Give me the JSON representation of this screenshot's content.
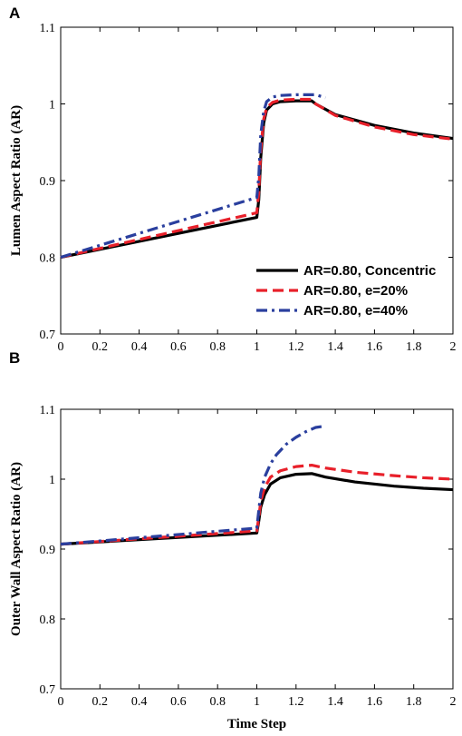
{
  "panels": [
    {
      "letter": "A",
      "chart_data": {
        "type": "line",
        "xlabel": "",
        "ylabel": "Lumen Aspect Ratio (AR)",
        "xlim": [
          0,
          2
        ],
        "ylim": [
          0.7,
          1.1
        ],
        "x_ticks": [
          0,
          0.2,
          0.4,
          0.6,
          0.8,
          1,
          1.2,
          1.4,
          1.6,
          1.8,
          2
        ],
        "x_tick_labels": [
          "0",
          "0.2",
          "0.4",
          "0.6",
          "0.8",
          "1",
          "1.2",
          "1.4",
          "1.6",
          "1.8",
          "2"
        ],
        "y_ticks": [
          0.7,
          0.8,
          0.9,
          1.0,
          1.1
        ],
        "y_tick_labels": [
          "0.7",
          "0.8",
          "0.9",
          "1",
          "1.1"
        ],
        "grid": false,
        "legend": "bottom-right",
        "series": [
          {
            "name": "AR=0.80, Concentric",
            "color": "#000000",
            "style": "solid",
            "points": [
              [
                0,
                0.8
              ],
              [
                1.0,
                0.852
              ],
              [
                1.01,
                0.875
              ],
              [
                1.02,
                0.93
              ],
              [
                1.035,
                0.975
              ],
              [
                1.05,
                0.992
              ],
              [
                1.08,
                1.0
              ],
              [
                1.12,
                1.003
              ],
              [
                1.2,
                1.004
              ],
              [
                1.28,
                1.004
              ],
              [
                1.3,
                1.0
              ],
              [
                1.4,
                0.986
              ],
              [
                1.6,
                0.972
              ],
              [
                1.8,
                0.962
              ],
              [
                2.0,
                0.955
              ]
            ]
          },
          {
            "name": "AR=0.80, e=20%",
            "color": "#e8202a",
            "style": "dashed",
            "points": [
              [
                0,
                0.8
              ],
              [
                1.0,
                0.858
              ],
              [
                1.01,
                0.885
              ],
              [
                1.02,
                0.94
              ],
              [
                1.035,
                0.98
              ],
              [
                1.05,
                0.995
              ],
              [
                1.08,
                1.002
              ],
              [
                1.12,
                1.005
              ],
              [
                1.2,
                1.006
              ],
              [
                1.28,
                1.006
              ],
              [
                1.3,
                1.0
              ],
              [
                1.4,
                0.985
              ],
              [
                1.6,
                0.97
              ],
              [
                1.8,
                0.96
              ],
              [
                2.0,
                0.954
              ]
            ]
          },
          {
            "name": "AR=0.80, e=40%",
            "color": "#2a3f9e",
            "style": "dashdot",
            "points": [
              [
                0,
                0.8
              ],
              [
                1.0,
                0.878
              ],
              [
                1.01,
                0.905
              ],
              [
                1.02,
                0.96
              ],
              [
                1.035,
                0.99
              ],
              [
                1.05,
                1.003
              ],
              [
                1.08,
                1.009
              ],
              [
                1.12,
                1.011
              ],
              [
                1.2,
                1.012
              ],
              [
                1.3,
                1.012
              ],
              [
                1.35,
                1.008
              ]
            ]
          }
        ]
      }
    },
    {
      "letter": "B",
      "chart_data": {
        "type": "line",
        "xlabel": "Time Step",
        "ylabel": "Outer Wall Aspect Ratio (AR)",
        "xlim": [
          0,
          2
        ],
        "ylim": [
          0.7,
          1.1
        ],
        "x_ticks": [
          0,
          0.2,
          0.4,
          0.6,
          0.8,
          1,
          1.2,
          1.4,
          1.6,
          1.8,
          2
        ],
        "x_tick_labels": [
          "0",
          "0.2",
          "0.4",
          "0.6",
          "0.8",
          "1",
          "1.2",
          "1.4",
          "1.6",
          "1.8",
          "2"
        ],
        "y_ticks": [
          0.7,
          0.8,
          0.9,
          1.0,
          1.1
        ],
        "y_tick_labels": [
          "0.7",
          "0.8",
          "0.9",
          "1",
          "1.1"
        ],
        "grid": false,
        "legend": "none",
        "series": [
          {
            "name": "AR=0.80, Concentric",
            "color": "#000000",
            "style": "solid",
            "points": [
              [
                0,
                0.907
              ],
              [
                1.0,
                0.923
              ],
              [
                1.01,
                0.94
              ],
              [
                1.02,
                0.96
              ],
              [
                1.04,
                0.978
              ],
              [
                1.07,
                0.993
              ],
              [
                1.12,
                1.002
              ],
              [
                1.2,
                1.007
              ],
              [
                1.28,
                1.008
              ],
              [
                1.35,
                1.003
              ],
              [
                1.5,
                0.996
              ],
              [
                1.7,
                0.99
              ],
              [
                1.85,
                0.987
              ],
              [
                2.0,
                0.985
              ]
            ]
          },
          {
            "name": "AR=0.80, e=20%",
            "color": "#e8202a",
            "style": "dashed",
            "points": [
              [
                0,
                0.907
              ],
              [
                1.0,
                0.926
              ],
              [
                1.01,
                0.945
              ],
              [
                1.02,
                0.968
              ],
              [
                1.04,
                0.988
              ],
              [
                1.07,
                1.003
              ],
              [
                1.12,
                1.012
              ],
              [
                1.2,
                1.018
              ],
              [
                1.28,
                1.02
              ],
              [
                1.35,
                1.016
              ],
              [
                1.5,
                1.01
              ],
              [
                1.7,
                1.005
              ],
              [
                1.85,
                1.002
              ],
              [
                2.0,
                1.0
              ]
            ]
          },
          {
            "name": "AR=0.80, e=40%",
            "color": "#2a3f9e",
            "style": "dashdot",
            "points": [
              [
                0,
                0.907
              ],
              [
                1.0,
                0.93
              ],
              [
                1.01,
                0.955
              ],
              [
                1.02,
                0.98
              ],
              [
                1.04,
                1.003
              ],
              [
                1.07,
                1.022
              ],
              [
                1.1,
                1.035
              ],
              [
                1.15,
                1.05
              ],
              [
                1.2,
                1.06
              ],
              [
                1.25,
                1.068
              ],
              [
                1.3,
                1.074
              ],
              [
                1.35,
                1.076
              ]
            ]
          }
        ]
      }
    }
  ]
}
